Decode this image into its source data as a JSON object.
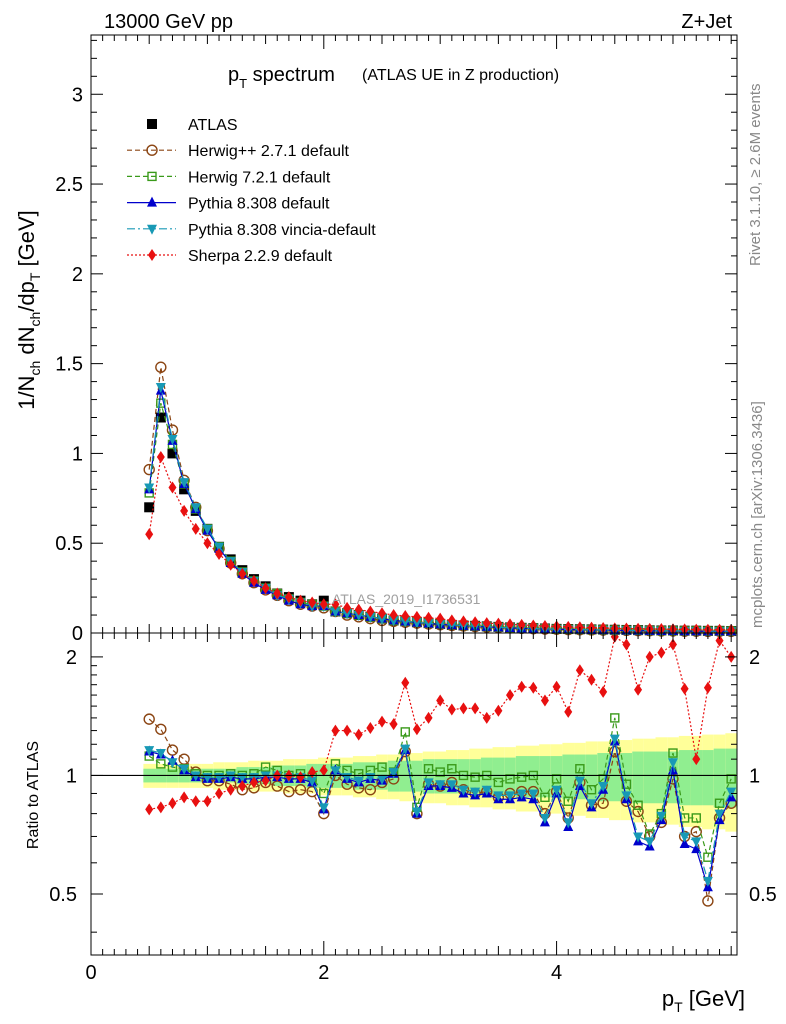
{
  "header": {
    "beam": "13000 GeV pp",
    "process": "Z+Jet"
  },
  "side_labels": {
    "rivet": "Rivet 3.1.10, ≥ 2.6M events",
    "mcplots": "mcplots.cern.ch [arXiv:1306.3436]"
  },
  "analysis_id": "ATLAS_2019_I1736531",
  "chart_data": [
    {
      "type": "line",
      "panel": "main",
      "title": "p_T spectrum",
      "subtitle": "(ATLAS UE in Z production)",
      "ylabel": "1/N_ch dN_ch/dp_T [GeV]",
      "xlim": [
        0,
        5.55
      ],
      "ylim": [
        0,
        3.33
      ],
      "yticks": [
        0,
        0.5,
        1,
        1.5,
        2,
        2.5,
        3
      ],
      "ytick_labels": [
        "0",
        "0.5",
        "1",
        "1.5",
        "2",
        "2.5",
        "3"
      ],
      "legend_position": "top-left",
      "x": [
        0.5,
        0.6,
        0.7,
        0.8,
        0.9,
        1.0,
        1.1,
        1.2,
        1.3,
        1.4,
        1.5,
        1.6,
        1.7,
        1.8,
        1.9,
        2.0,
        2.1,
        2.2,
        2.3,
        2.4,
        2.5,
        2.6,
        2.7,
        2.8,
        2.9,
        3.0,
        3.1,
        3.2,
        3.3,
        3.4,
        3.5,
        3.6,
        3.7,
        3.8,
        3.9,
        4.0,
        4.1,
        4.2,
        4.3,
        4.4,
        4.5,
        4.6,
        4.7,
        4.8,
        4.9,
        5.0,
        5.1,
        5.2,
        5.3,
        5.4,
        5.5
      ],
      "series": [
        {
          "name": "ATLAS",
          "color": "#000000",
          "marker": "square-filled",
          "values": [
            0.7,
            1.2,
            1.0,
            0.8,
            0.68,
            0.58,
            0.48,
            0.41,
            0.35,
            0.3,
            0.26,
            0.22,
            0.2,
            0.18,
            0.16,
            0.18,
            0.12,
            0.11,
            0.1,
            0.09,
            0.08,
            0.07,
            0.065,
            0.06,
            0.055,
            0.05,
            0.045,
            0.042,
            0.04,
            0.037,
            0.034,
            0.031,
            0.029,
            0.027,
            0.025,
            0.023,
            0.022,
            0.021,
            0.02,
            0.019,
            0.018,
            0.017,
            0.016,
            0.015,
            0.014,
            0.014,
            0.013,
            0.013,
            0.012,
            0.012,
            0.011
          ]
        },
        {
          "name": "Herwig++ 2.7.1 default",
          "color": "#8B4513",
          "marker": "circle-open",
          "dash": "5,3",
          "values": [
            0.91,
            1.48,
            1.13,
            0.85,
            0.7,
            0.57,
            0.47,
            0.39,
            0.33,
            0.28,
            0.24,
            0.21,
            0.18,
            0.16,
            0.15,
            0.14,
            0.12,
            0.1,
            0.09,
            0.08,
            0.07,
            0.065,
            0.06,
            0.055,
            0.05,
            0.046,
            0.042,
            0.039,
            0.036,
            0.033,
            0.031,
            0.028,
            0.026,
            0.024,
            0.022,
            0.021,
            0.019,
            0.018,
            0.017,
            0.016,
            0.015,
            0.014,
            0.013,
            0.012,
            0.011,
            0.011,
            0.01,
            0.01,
            0.009,
            0.009,
            0.009
          ]
        },
        {
          "name": "Herwig 7.2.1 default",
          "color": "#3a9a1a",
          "marker": "square-open",
          "dash": "5,3",
          "values": [
            0.78,
            1.28,
            1.05,
            0.83,
            0.69,
            0.58,
            0.48,
            0.4,
            0.34,
            0.29,
            0.25,
            0.22,
            0.19,
            0.17,
            0.16,
            0.15,
            0.12,
            0.11,
            0.1,
            0.09,
            0.08,
            0.07,
            0.065,
            0.06,
            0.055,
            0.05,
            0.046,
            0.042,
            0.039,
            0.036,
            0.033,
            0.03,
            0.028,
            0.026,
            0.024,
            0.022,
            0.021,
            0.02,
            0.019,
            0.018,
            0.017,
            0.016,
            0.015,
            0.014,
            0.013,
            0.013,
            0.012,
            0.012,
            0.011,
            0.011,
            0.011
          ]
        },
        {
          "name": "Pythia 8.308 default",
          "color": "#0000cc",
          "marker": "triangle-up-filled",
          "values": [
            0.8,
            1.35,
            1.07,
            0.83,
            0.69,
            0.57,
            0.47,
            0.39,
            0.33,
            0.28,
            0.24,
            0.21,
            0.18,
            0.16,
            0.15,
            0.15,
            0.12,
            0.11,
            0.1,
            0.09,
            0.08,
            0.07,
            0.064,
            0.058,
            0.053,
            0.048,
            0.044,
            0.04,
            0.037,
            0.034,
            0.031,
            0.028,
            0.026,
            0.024,
            0.022,
            0.021,
            0.019,
            0.018,
            0.017,
            0.016,
            0.015,
            0.014,
            0.013,
            0.012,
            0.011,
            0.011,
            0.01,
            0.01,
            0.009,
            0.009,
            0.009
          ]
        },
        {
          "name": "Pythia 8.308 vincia-default",
          "color": "#1899b5",
          "marker": "triangle-down-filled",
          "dash": "8,3,2,3",
          "values": [
            0.81,
            1.37,
            1.08,
            0.84,
            0.7,
            0.58,
            0.48,
            0.4,
            0.34,
            0.29,
            0.25,
            0.21,
            0.19,
            0.17,
            0.15,
            0.15,
            0.12,
            0.11,
            0.1,
            0.09,
            0.08,
            0.07,
            0.065,
            0.059,
            0.054,
            0.049,
            0.045,
            0.041,
            0.038,
            0.035,
            0.032,
            0.029,
            0.027,
            0.025,
            0.023,
            0.021,
            0.02,
            0.019,
            0.018,
            0.017,
            0.016,
            0.015,
            0.014,
            0.013,
            0.012,
            0.012,
            0.011,
            0.011,
            0.01,
            0.01,
            0.01
          ]
        },
        {
          "name": "Sherpa 2.2.9 default",
          "color": "#e81010",
          "marker": "diamond-filled",
          "dash": "2,2",
          "values": [
            0.55,
            0.98,
            0.81,
            0.68,
            0.58,
            0.5,
            0.44,
            0.38,
            0.33,
            0.29,
            0.25,
            0.22,
            0.2,
            0.18,
            0.17,
            0.16,
            0.16,
            0.14,
            0.13,
            0.12,
            0.11,
            0.1,
            0.095,
            0.09,
            0.085,
            0.08,
            0.07,
            0.065,
            0.06,
            0.055,
            0.052,
            0.048,
            0.045,
            0.042,
            0.039,
            0.037,
            0.034,
            0.032,
            0.03,
            0.028,
            0.026,
            0.025,
            0.024,
            0.023,
            0.022,
            0.021,
            0.02,
            0.019,
            0.018,
            0.018,
            0.017
          ]
        }
      ]
    },
    {
      "type": "line",
      "panel": "ratio",
      "ylabel": "Ratio to ATLAS",
      "xlabel": "p_T [GeV]",
      "xlim": [
        0,
        5.55
      ],
      "ylim": [
        0.35,
        2.3
      ],
      "yticks": [
        0.5,
        1,
        2
      ],
      "ytick_labels": [
        "0.5",
        "1",
        "2"
      ],
      "xticks": [
        0,
        2,
        4
      ],
      "xtick_labels": [
        "0",
        "2",
        "4"
      ],
      "band_colors": {
        "inner": "#90ee90",
        "outer": "#ffff99"
      },
      "band_inner": [
        0.04,
        0.04,
        0.04,
        0.04,
        0.04,
        0.04,
        0.04,
        0.04,
        0.05,
        0.05,
        0.05,
        0.06,
        0.06,
        0.06,
        0.07,
        0.07,
        0.07,
        0.07,
        0.08,
        0.08,
        0.08,
        0.09,
        0.09,
        0.09,
        0.1,
        0.1,
        0.1,
        0.1,
        0.1,
        0.11,
        0.11,
        0.11,
        0.12,
        0.12,
        0.12,
        0.12,
        0.13,
        0.13,
        0.13,
        0.14,
        0.14,
        0.14,
        0.15,
        0.15,
        0.15,
        0.15,
        0.16,
        0.16,
        0.16,
        0.17,
        0.17
      ],
      "band_outer": [
        0.07,
        0.07,
        0.07,
        0.07,
        0.07,
        0.07,
        0.08,
        0.08,
        0.08,
        0.09,
        0.09,
        0.09,
        0.1,
        0.1,
        0.1,
        0.11,
        0.11,
        0.11,
        0.12,
        0.12,
        0.13,
        0.13,
        0.14,
        0.14,
        0.15,
        0.15,
        0.16,
        0.16,
        0.17,
        0.17,
        0.18,
        0.18,
        0.19,
        0.19,
        0.2,
        0.2,
        0.21,
        0.21,
        0.22,
        0.22,
        0.23,
        0.23,
        0.24,
        0.24,
        0.25,
        0.25,
        0.26,
        0.26,
        0.27,
        0.27,
        0.28
      ],
      "x": [
        0.5,
        0.6,
        0.7,
        0.8,
        0.9,
        1.0,
        1.1,
        1.2,
        1.3,
        1.4,
        1.5,
        1.6,
        1.7,
        1.8,
        1.9,
        2.0,
        2.1,
        2.2,
        2.3,
        2.4,
        2.5,
        2.6,
        2.7,
        2.8,
        2.9,
        3.0,
        3.1,
        3.2,
        3.3,
        3.4,
        3.5,
        3.6,
        3.7,
        3.8,
        3.9,
        4.0,
        4.1,
        4.2,
        4.3,
        4.4,
        4.5,
        4.6,
        4.7,
        4.8,
        4.9,
        5.0,
        5.1,
        5.2,
        5.3,
        5.4,
        5.5
      ],
      "series": [
        {
          "name": "Herwig++ 2.7.1 default",
          "color": "#8B4513",
          "marker": "circle-open",
          "dash": "5,3",
          "values": [
            1.39,
            1.31,
            1.16,
            1.1,
            1.02,
            0.97,
            0.97,
            0.95,
            0.92,
            0.93,
            0.96,
            0.94,
            0.91,
            0.92,
            0.91,
            0.8,
            1.0,
            0.95,
            0.93,
            0.92,
            0.96,
            0.98,
            1.15,
            0.8,
            0.95,
            0.94,
            0.96,
            0.92,
            0.9,
            0.91,
            0.88,
            0.9,
            0.91,
            0.91,
            0.8,
            0.91,
            0.78,
            0.96,
            0.84,
            0.85,
            1.15,
            0.86,
            0.81,
            0.7,
            0.76,
            0.98,
            0.7,
            0.72,
            0.48,
            0.78,
            0.85
          ]
        },
        {
          "name": "Herwig 7.2.1 default",
          "color": "#3a9a1a",
          "marker": "square-open",
          "dash": "5,3",
          "values": [
            1.12,
            1.07,
            1.05,
            1.04,
            1.01,
            1.0,
            1.0,
            1.01,
            1.0,
            1.01,
            1.05,
            1.03,
            1.0,
            1.01,
            0.99,
            0.9,
            1.07,
            1.03,
            1.01,
            1.03,
            1.05,
            1.02,
            1.29,
            0.83,
            1.04,
            1.02,
            1.04,
            1.0,
            0.99,
            1.0,
            0.96,
            0.98,
            0.99,
            1.0,
            0.88,
            0.98,
            0.86,
            1.04,
            0.92,
            0.98,
            1.4,
            0.95,
            0.84,
            0.71,
            0.8,
            1.14,
            0.78,
            0.78,
            0.62,
            0.85,
            0.98
          ]
        },
        {
          "name": "Pythia 8.308 default",
          "color": "#0000cc",
          "marker": "triangle-up-filled",
          "values": [
            1.15,
            1.13,
            1.09,
            1.03,
            0.99,
            0.98,
            0.98,
            0.99,
            0.98,
            0.98,
            0.99,
            0.99,
            0.98,
            0.98,
            0.96,
            0.82,
            1.03,
            0.98,
            0.96,
            0.98,
            0.97,
            1.01,
            1.16,
            0.8,
            0.94,
            0.94,
            0.93,
            0.9,
            0.89,
            0.9,
            0.87,
            0.87,
            0.88,
            0.87,
            0.76,
            0.9,
            0.74,
            0.94,
            0.83,
            0.92,
            1.22,
            0.87,
            0.68,
            0.66,
            0.77,
            1.03,
            0.67,
            0.65,
            0.52,
            0.77,
            0.88
          ]
        },
        {
          "name": "Pythia 8.308 vincia-default",
          "color": "#1899b5",
          "marker": "triangle-down-filled",
          "dash": "8,3,2,3",
          "values": [
            1.16,
            1.14,
            1.08,
            1.04,
            1.0,
            0.99,
            0.99,
            1.0,
            0.99,
            0.99,
            1.0,
            1.0,
            0.99,
            0.99,
            0.97,
            0.83,
            1.03,
            0.99,
            0.97,
            0.99,
            0.98,
            1.02,
            1.17,
            0.81,
            0.96,
            0.95,
            0.95,
            0.92,
            0.91,
            0.92,
            0.89,
            0.89,
            0.9,
            0.9,
            0.78,
            0.92,
            0.76,
            0.97,
            0.85,
            0.94,
            1.24,
            0.89,
            0.7,
            0.68,
            0.79,
            1.08,
            0.7,
            0.68,
            0.54,
            0.8,
            0.91
          ]
        },
        {
          "name": "Sherpa 2.2.9 default",
          "color": "#e81010",
          "marker": "diamond-filled",
          "dash": "2,2",
          "values": [
            0.82,
            0.83,
            0.85,
            0.88,
            0.86,
            0.86,
            0.9,
            0.92,
            0.94,
            0.96,
            0.97,
            1.0,
            1.0,
            0.99,
            1.02,
            1.03,
            1.3,
            1.3,
            1.27,
            1.32,
            1.37,
            1.35,
            1.72,
            1.31,
            1.4,
            1.55,
            1.47,
            1.48,
            1.48,
            1.4,
            1.46,
            1.6,
            1.68,
            1.67,
            1.55,
            1.68,
            1.45,
            1.85,
            1.75,
            1.63,
            2.25,
            2.15,
            1.65,
            2.0,
            2.05,
            2.15,
            1.66,
            1.1,
            1.67,
            2.2,
            2.0
          ]
        }
      ]
    }
  ]
}
